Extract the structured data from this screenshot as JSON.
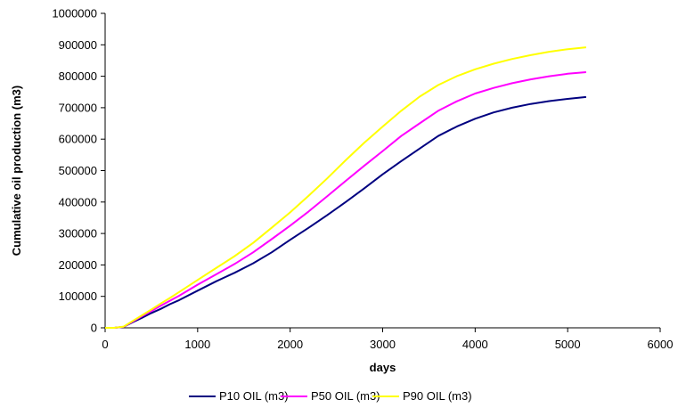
{
  "chart_data": {
    "type": "line",
    "title": "",
    "xlabel": "days",
    "ylabel": "Cumulative oil production (m3)",
    "xlim": [
      0,
      6000
    ],
    "ylim": [
      0,
      1000000
    ],
    "x_ticks": [
      "0",
      "1000",
      "2000",
      "3000",
      "4000",
      "5000",
      "6000"
    ],
    "y_ticks": [
      "0",
      "100000",
      "200000",
      "300000",
      "400000",
      "500000",
      "600000",
      "700000",
      "800000",
      "900000",
      "1000000"
    ],
    "grid": false,
    "legend_position": "bottom",
    "x": [
      0,
      100,
      200,
      300,
      400,
      500,
      600,
      700,
      800,
      1000,
      1200,
      1400,
      1600,
      1800,
      2000,
      2200,
      2400,
      2600,
      2800,
      3000,
      3200,
      3400,
      3600,
      3800,
      4000,
      4200,
      4400,
      4600,
      4800,
      5000,
      5200
    ],
    "series": [
      {
        "name": "P10 OIL (m3)",
        "color": "#000080",
        "values": [
          0,
          0,
          3000,
          18000,
          32000,
          47000,
          60000,
          75000,
          88000,
          118000,
          148000,
          175000,
          205000,
          240000,
          280000,
          318000,
          358000,
          400000,
          443000,
          488000,
          530000,
          570000,
          610000,
          640000,
          665000,
          685000,
          700000,
          712000,
          721000,
          728000,
          734000
        ]
      },
      {
        "name": "P50 OIL (m3)",
        "color": "#FF00FF",
        "values": [
          0,
          0,
          3000,
          20000,
          37000,
          53000,
          70000,
          86000,
          102000,
          137000,
          170000,
          203000,
          240000,
          282000,
          325000,
          370000,
          418000,
          467000,
          515000,
          562000,
          610000,
          650000,
          690000,
          720000,
          745000,
          763000,
          778000,
          790000,
          800000,
          808000,
          813000
        ]
      },
      {
        "name": "P90 OIL (m3)",
        "color": "#FFFF00",
        "values": [
          0,
          0,
          4000,
          22000,
          40000,
          58000,
          77000,
          95000,
          114000,
          152000,
          190000,
          228000,
          270000,
          318000,
          367000,
          420000,
          475000,
          533000,
          588000,
          640000,
          690000,
          735000,
          772000,
          800000,
          822000,
          840000,
          855000,
          867000,
          878000,
          886000,
          892000
        ]
      }
    ]
  }
}
